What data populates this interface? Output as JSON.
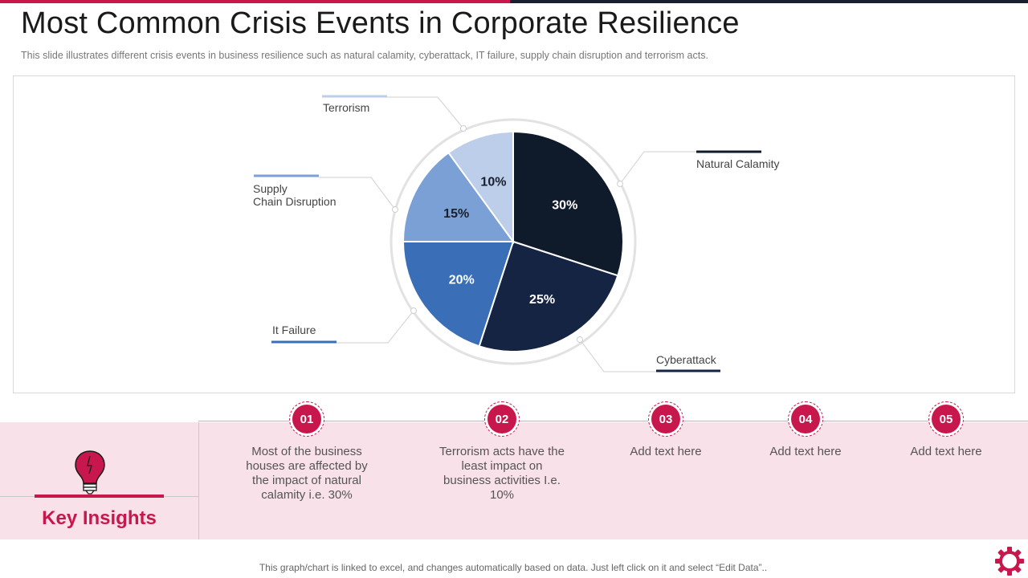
{
  "header": {
    "title": "Most Common Crisis Events in Corporate Resilience",
    "subtitle": "This slide illustrates different crisis events in business resilience such as natural calamity, cyberattack, IT failure, supply chain disruption and terrorism acts."
  },
  "colors": {
    "accent": "#c8174d",
    "dark_bar": "#1a1f2e",
    "band": "#f8e1e8"
  },
  "chart_data": {
    "type": "pie",
    "title": "",
    "slices": [
      {
        "label": "Natural Calamity",
        "value": 30,
        "pct_label": "30%",
        "color": "#0f1a2b",
        "pct_color": "#ffffff"
      },
      {
        "label": "Cyberattack",
        "value": 25,
        "pct_label": "25%",
        "color": "#162443",
        "pct_color": "#ffffff"
      },
      {
        "label": "It Failure",
        "value": 20,
        "pct_label": "20%",
        "color": "#3a6fb8",
        "pct_color": "#ffffff"
      },
      {
        "label": "Supply\nChain Disruption",
        "value": 15,
        "pct_label": "15%",
        "color": "#7aa0d6",
        "pct_color": "#1a1f2e"
      },
      {
        "label": "Terrorism",
        "value": 10,
        "pct_label": "10%",
        "color": "#bccee9",
        "pct_color": "#1a1f2e"
      }
    ]
  },
  "insights": {
    "icon": "lightbulb-icon",
    "title": "Key Insights",
    "points": [
      {
        "number": "01",
        "text": "Most of the business houses are affected by the impact of natural calamity i.e. 30%"
      },
      {
        "number": "02",
        "text": "Terrorism acts have the least impact on business activities I.e. 10%"
      },
      {
        "number": "03",
        "text": "Add text here"
      },
      {
        "number": "04",
        "text": "Add text here"
      },
      {
        "number": "05",
        "text": "Add text here"
      }
    ]
  },
  "footer": {
    "note": "This graph/chart is linked to excel, and changes automatically based on data. Just left click on it and select “Edit Data”..",
    "icon": "gear-icon"
  }
}
